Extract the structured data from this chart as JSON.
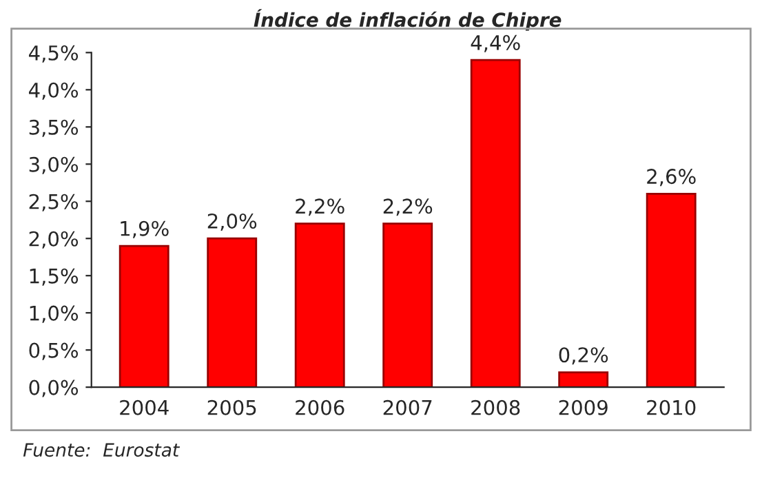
{
  "chart_data": {
    "type": "bar",
    "title": "Índice de inflación de Chipre",
    "categories": [
      "2004",
      "2005",
      "2006",
      "2007",
      "2008",
      "2009",
      "2010"
    ],
    "values": [
      1.9,
      2.0,
      2.2,
      2.2,
      4.4,
      0.2,
      2.6
    ],
    "value_labels": [
      "1,9%",
      "2,0%",
      "2,2%",
      "2,2%",
      "4,4%",
      "0,2%",
      "2,6%"
    ],
    "color": "#ff0000",
    "ylim": [
      0,
      4.5
    ],
    "yticks": [
      {
        "value": 0,
        "label": "0,0%"
      },
      {
        "value": 0.5,
        "label": "0,5%"
      },
      {
        "value": 1,
        "label": "1,0%"
      },
      {
        "value": 1.5,
        "label": "1,5%"
      },
      {
        "value": 2,
        "label": "2,0%"
      },
      {
        "value": 2.5,
        "label": "2,5%"
      },
      {
        "value": 3,
        "label": "3,0%"
      },
      {
        "value": 3.5,
        "label": "3,5%"
      },
      {
        "value": 4,
        "label": "4,0%"
      },
      {
        "value": 4.5,
        "label": "4,5%"
      }
    ],
    "grid": false,
    "annotations": [
      "Fuente:  Eurostat"
    ]
  }
}
